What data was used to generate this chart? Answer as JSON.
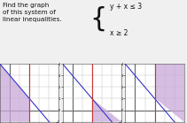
{
  "title_text": "Find the graph\nof this system of\nlinear inequalities.",
  "system_line1": "y + x ≤ 3",
  "system_line2": "x ≥ 2",
  "text_color": "#111111",
  "bg_color": "#f0f0f0",
  "shade_color": "#c8a8d8",
  "line_color": "#3333cc",
  "vline_color": "#cc3333",
  "xlim": [
    -1,
    5
  ],
  "ylim": [
    -1,
    4
  ],
  "graphs": [
    "left_shade",
    "right_lower_shade",
    "right_upper_shade"
  ]
}
